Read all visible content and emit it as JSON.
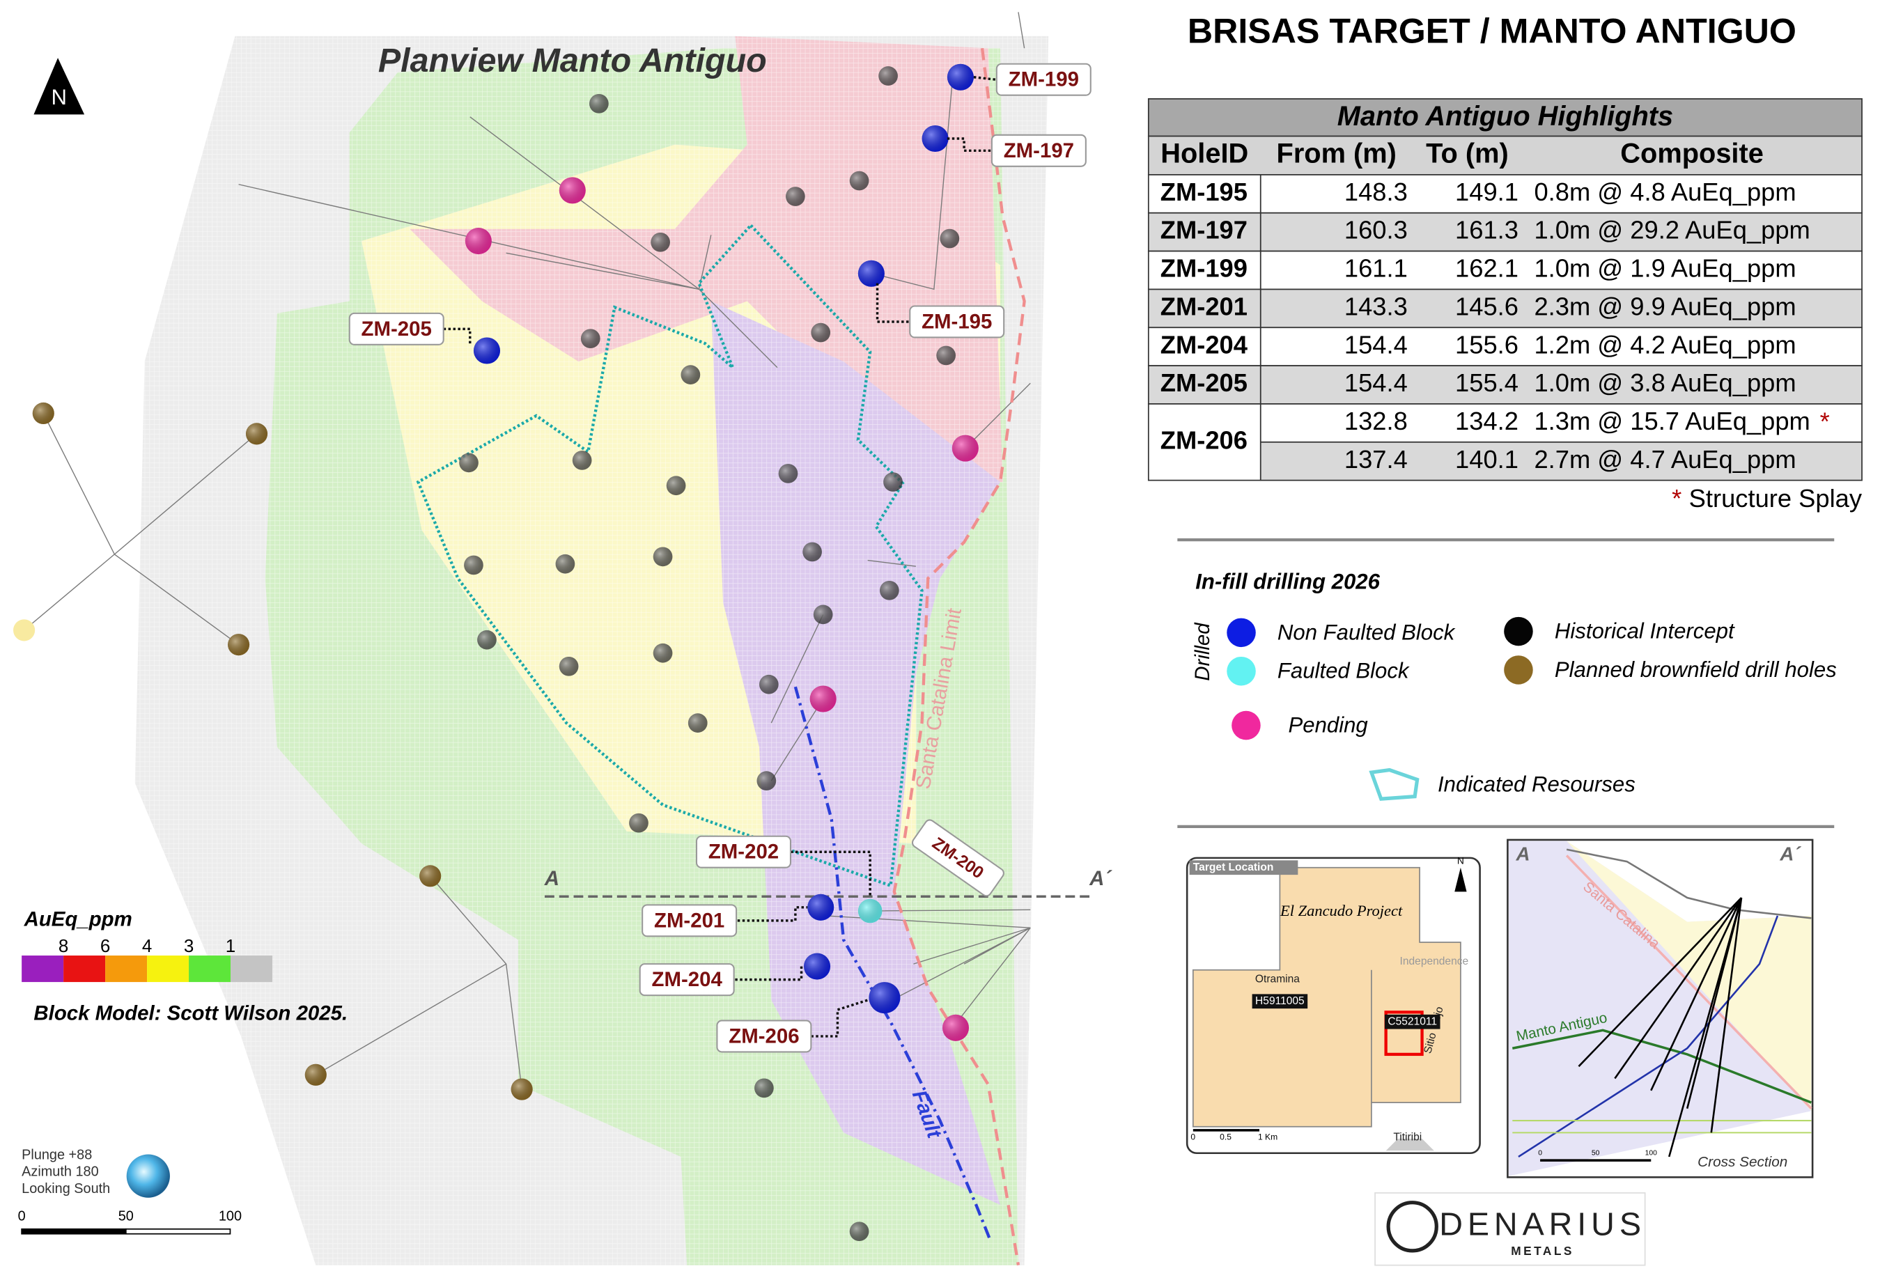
{
  "title": "Planview Manto Antiguo",
  "north": "N",
  "header": {
    "title": "BRISAS TARGET / MANTO ANTIGUO"
  },
  "table": {
    "caption": "Manto Antiguo Highlights",
    "columns": [
      "HoleID",
      "From (m)",
      "To (m)",
      "Composite"
    ],
    "rows": [
      {
        "hole": "ZM-195",
        "intervals": [
          {
            "from": 148.3,
            "to": 149.1,
            "composite": "0.8m @ 4.8 AuEq_ppm"
          }
        ]
      },
      {
        "hole": "ZM-197",
        "intervals": [
          {
            "from": 160.3,
            "to": 161.3,
            "composite": "1.0m @ 29.2 AuEq_ppm"
          }
        ]
      },
      {
        "hole": "ZM-199",
        "intervals": [
          {
            "from": 161.1,
            "to": 162.1,
            "composite": "1.0m @ 1.9 AuEq_ppm"
          }
        ]
      },
      {
        "hole": "ZM-201",
        "intervals": [
          {
            "from": 143.3,
            "to": 145.6,
            "composite": "2.3m @ 9.9 AuEq_ppm"
          }
        ]
      },
      {
        "hole": "ZM-204",
        "intervals": [
          {
            "from": 154.4,
            "to": 155.6,
            "composite": "1.2m @ 4.2 AuEq_ppm"
          }
        ]
      },
      {
        "hole": "ZM-205",
        "intervals": [
          {
            "from": 154.4,
            "to": 155.4,
            "composite": "1.0m @ 3.8 AuEq_ppm"
          }
        ]
      },
      {
        "hole": "ZM-206",
        "intervals": [
          {
            "from": 132.8,
            "to": 134.2,
            "composite": "1.3m @ 15.7 AuEq_ppm",
            "note": "*"
          },
          {
            "from": 137.4,
            "to": 140.1,
            "composite": "2.7m @ 4.7 AuEq_ppm"
          }
        ]
      }
    ],
    "footnote": {
      "mark": "*",
      "text": "Structure Splay"
    }
  },
  "legend": {
    "title": "In-fill drilling 2026",
    "group": "Drilled",
    "items": [
      {
        "label": "Non Faulted Block",
        "color": "#0d1de3"
      },
      {
        "label": "Faulted Block",
        "color": "#62f2f2"
      },
      {
        "label": "Historical Intercept",
        "color": "#050505"
      },
      {
        "label": "Planned brownfield drill holes",
        "color": "#8c6a24"
      },
      {
        "label": "Pending",
        "color": "#f0289e"
      },
      {
        "label": "Indicated Resourses",
        "color": "#6ad4da"
      }
    ]
  },
  "hole_labels": [
    "ZM-199",
    "ZM-197",
    "ZM-195",
    "ZM-205",
    "ZM-202",
    "ZM-201",
    "ZM-204",
    "ZM-206",
    "ZM-200"
  ],
  "section_labels": {
    "start": "A",
    "end": "A´"
  },
  "annotations": {
    "limit": "Santa Catalina Limit",
    "fault": "Fault"
  },
  "color_scale": {
    "title": "AuEq_ppm",
    "ticks": [
      8,
      6,
      4,
      3,
      1
    ],
    "colors": [
      "#9a1fbe",
      "#e81313",
      "#f59a0c",
      "#f6f20f",
      "#5de63a",
      "#c4c4c4"
    ]
  },
  "block_model": "Block Model: Scott Wilson 2025.",
  "view": [
    "Plunge +88",
    "Azimuth 180",
    "Looking South"
  ],
  "scale_bar": [
    0,
    50,
    100
  ],
  "inset_location": {
    "title": "Target Location",
    "project": "El Zancudo Project",
    "places": [
      "Otramina",
      "Independence",
      "Sitio Viejo",
      "Titiribi"
    ],
    "claims": [
      "H5911005",
      "C5521011"
    ],
    "north": "N",
    "scale": [
      "0",
      "0.5",
      "1 Km"
    ]
  },
  "cross_section": {
    "start": "A",
    "end": "A´",
    "limit": "Santa Catalina",
    "unit": "Manto Antiguo",
    "caption": "Cross Section",
    "scale": [
      0,
      50,
      100
    ]
  },
  "logo": {
    "name": "DENARIUS",
    "sub": "METALS"
  }
}
